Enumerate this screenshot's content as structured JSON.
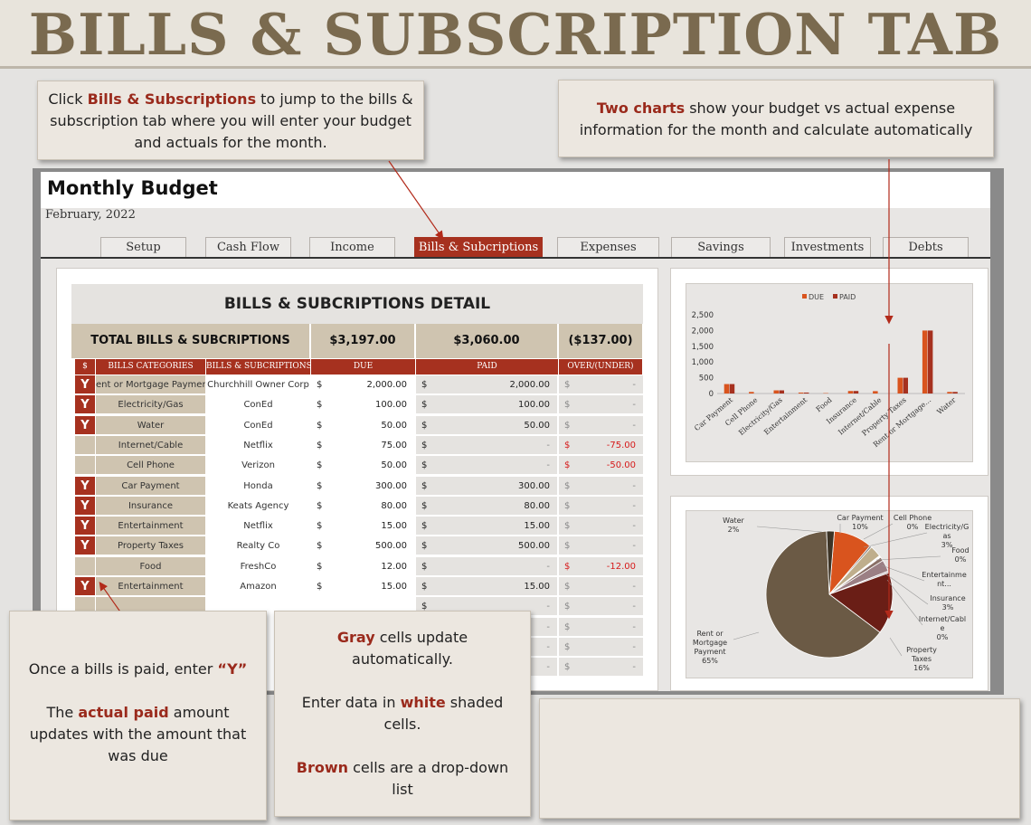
{
  "banner": {
    "title": "BILLS & SUBSCRIPTION TAB"
  },
  "callouts": {
    "top_left": {
      "pre": "Click ",
      "highlight": "Bills & Subscriptions",
      "post": " to jump to the bills & subscription tab where you will enter your budget and actuals for the month."
    },
    "top_right": {
      "highlight": "Two charts",
      "post": " show your budget vs actual expense information for the month and calculate automatically"
    },
    "bottom_left": {
      "line1_pre": "Once a bills is paid, enter ",
      "line1_hl": "“Y”",
      "line2_pre": "The ",
      "line2_hl": "actual paid",
      "line2_post": " amount updates with the amount that was due"
    },
    "bottom_mid": {
      "p1_hl": "Gray",
      "p1_post": " cells update automatically.",
      "p2_pre": "Enter data in ",
      "p2_hl": "white",
      "p2_post": " shaded cells.",
      "p3_hl": "Brown",
      "p3_post": " cells are a drop-down list"
    }
  },
  "sheet": {
    "title": "Monthly Budget",
    "date": "February, 2022",
    "tabs": [
      "Setup",
      "Cash Flow",
      "Income",
      "Bills & Subcriptions",
      "Expenses",
      "Savings",
      "Investments",
      "Debts"
    ]
  },
  "table": {
    "title": "BILLS & SUBCRIPTIONS DETAIL",
    "totals": {
      "label": "TOTAL BILLS & SUBCRIPTIONS",
      "due": "$3,197.00",
      "paid": "$3,060.00",
      "over": "($137.00)"
    },
    "headers": [
      "$",
      "BILLS CATEGORIES",
      "BILLS & SUBCRIPTIONS",
      "DUE",
      "PAID",
      "OVER/(UNDER)"
    ],
    "currency": "$",
    "rows": [
      {
        "flag": "Y",
        "category": "ent or Mortgage Paymer",
        "sub": "Churchhill Owner Corp",
        "due": "2,000.00",
        "paid": "2,000.00",
        "over": "-"
      },
      {
        "flag": "Y",
        "category": "Electricity/Gas",
        "sub": "ConEd",
        "due": "100.00",
        "paid": "100.00",
        "over": "-"
      },
      {
        "flag": "Y",
        "category": "Water",
        "sub": "ConEd",
        "due": "50.00",
        "paid": "50.00",
        "over": "-"
      },
      {
        "flag": "",
        "category": "Internet/Cable",
        "sub": "Netflix",
        "due": "75.00",
        "paid": "-",
        "over": "-75.00"
      },
      {
        "flag": "",
        "category": "Cell Phone",
        "sub": "Verizon",
        "due": "50.00",
        "paid": "-",
        "over": "-50.00"
      },
      {
        "flag": "Y",
        "category": "Car Payment",
        "sub": "Honda",
        "due": "300.00",
        "paid": "300.00",
        "over": "-"
      },
      {
        "flag": "Y",
        "category": "Insurance",
        "sub": "Keats Agency",
        "due": "80.00",
        "paid": "80.00",
        "over": "-"
      },
      {
        "flag": "Y",
        "category": "Entertainment",
        "sub": "Netflix",
        "due": "15.00",
        "paid": "15.00",
        "over": "-"
      },
      {
        "flag": "Y",
        "category": "Property Taxes",
        "sub": "Realty Co",
        "due": "500.00",
        "paid": "500.00",
        "over": "-"
      },
      {
        "flag": "",
        "category": "Food",
        "sub": "FreshCo",
        "due": "12.00",
        "paid": "-",
        "over": "-12.00"
      },
      {
        "flag": "Y",
        "category": "Entertainment",
        "sub": "Amazon",
        "due": "15.00",
        "paid": "15.00",
        "over": "-"
      }
    ]
  },
  "chart_data": [
    {
      "type": "bar",
      "legend": "top-center",
      "categories": [
        "Car Payment",
        "Cell Phone",
        "Electricity/Gas",
        "Entertainment",
        "Food",
        "Insurance",
        "Internet/Cable",
        "Property Taxes",
        "Rent or Mortgage...",
        "Water"
      ],
      "series": [
        {
          "name": "DUE",
          "values": [
            300,
            50,
            100,
            30,
            12,
            80,
            75,
            500,
            2000,
            50
          ]
        },
        {
          "name": "PAID",
          "values": [
            300,
            0,
            100,
            30,
            0,
            80,
            0,
            500,
            2000,
            50
          ]
        }
      ],
      "yticks": [
        "0",
        "500",
        "1,000",
        "1,500",
        "2,000",
        "2,500"
      ],
      "ylim": [
        0,
        2500
      ],
      "colors": {
        "DUE": "#d9541e",
        "PAID": "#a6311f"
      }
    },
    {
      "type": "pie",
      "slices": [
        {
          "label": "Car Payment",
          "value": 10,
          "pct": "10%",
          "color": "#d9541e"
        },
        {
          "label": "Cell Phone",
          "value": 0.5,
          "pct": "0%",
          "color": "#7f7f7f"
        },
        {
          "label": "Electricity/Gas",
          "value": 3,
          "pct": "3%",
          "color": "#bfae8c"
        },
        {
          "label": "Food",
          "value": 0.5,
          "pct": "0%",
          "color": "#ffffff"
        },
        {
          "label": "Entertainment",
          "value": 1,
          "pct": "",
          "color": "#8a6f66"
        },
        {
          "label": "Insurance",
          "value": 3,
          "pct": "3%",
          "color": "#9b7f84"
        },
        {
          "label": "Internet/Cable",
          "value": 0.5,
          "pct": "0%",
          "color": "#c9c2c6"
        },
        {
          "label": "Property Taxes",
          "value": 16,
          "pct": "16%",
          "color": "#6a1e16"
        },
        {
          "label": "Rent or Mortgage Payment",
          "value": 65,
          "pct": "65%",
          "color": "#6b5a45"
        },
        {
          "label": "Water",
          "value": 2,
          "pct": "2%",
          "color": "#3d3426"
        }
      ],
      "labels_display": [
        {
          "name": "Car Payment",
          "pct": "10%"
        },
        {
          "name": "Cell Phone",
          "pct": "0%"
        },
        {
          "name": "Electricity/G as",
          "pct": "3%"
        },
        {
          "name": "Food",
          "pct": "0%"
        },
        {
          "name": "Entertainme nt...",
          "pct": ""
        },
        {
          "name": "Insurance",
          "pct": "3%"
        },
        {
          "name": "Internet/Cabl e",
          "pct": "0%"
        },
        {
          "name": "Property Taxes",
          "pct": "16%"
        },
        {
          "name": "Rent or Mortgage Payment",
          "pct": "65%"
        },
        {
          "name": "Water",
          "pct": "2%"
        }
      ]
    }
  ]
}
